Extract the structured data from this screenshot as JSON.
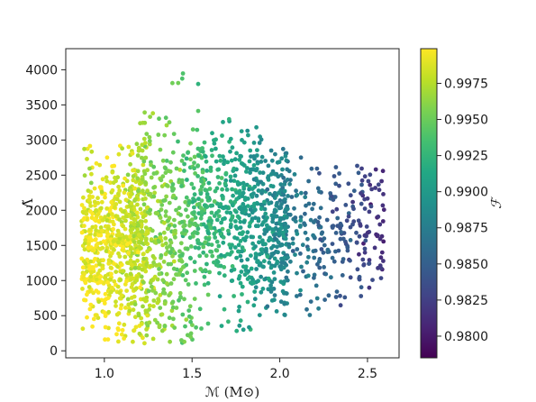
{
  "chart_data": {
    "type": "scatter",
    "title": "",
    "xlabel": "ℳ (M⊙)",
    "ylabel": "Λ̃",
    "xlim": [
      0.78,
      2.68
    ],
    "ylim": [
      -100,
      4300
    ],
    "xticks": [
      "1.0",
      "1.5",
      "2.0",
      "2.5"
    ],
    "yticks": [
      "0",
      "500",
      "1000",
      "1500",
      "2000",
      "2500",
      "3000",
      "3500",
      "4000"
    ],
    "grid": false,
    "colorbar": {
      "label": "ℱ",
      "colormap": "viridis",
      "range": [
        0.9785,
        0.9999
      ],
      "ticks": [
        "0.9800",
        "0.9825",
        "0.9850",
        "0.9875",
        "0.9900",
        "0.9925",
        "0.9950",
        "0.9975"
      ]
    },
    "points": {
      "count": 2000,
      "mchirp_range": [
        0.85,
        2.6
      ],
      "lambda_tilde_range": [
        100,
        4100
      ],
      "color_trend": "fitting factor decreases from ~0.9999 at low chirp mass to ~0.979 at high chirp mass"
    }
  }
}
